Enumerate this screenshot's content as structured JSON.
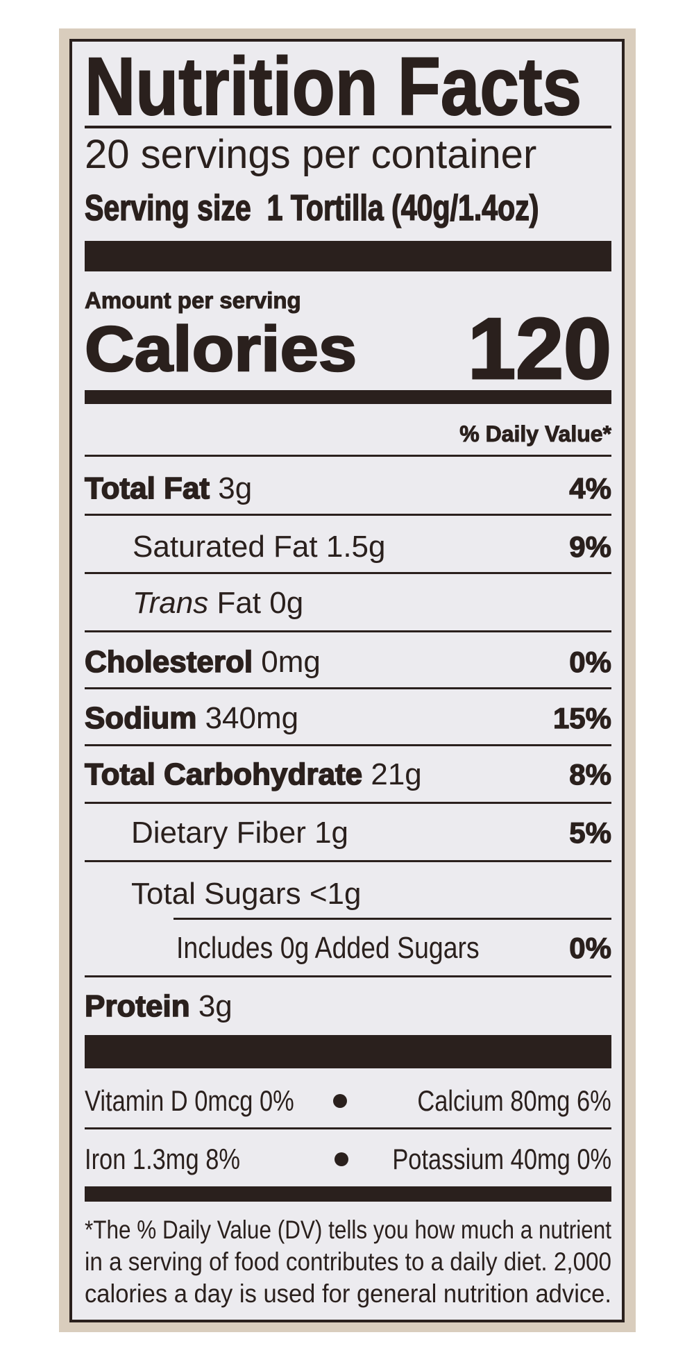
{
  "label": {
    "title": "Nutrition Facts",
    "servings": "20 servings per container",
    "serving_size_label": "Serving size",
    "serving_size_value": "1 Tortilla (40g/1.4oz)",
    "amount_per_serving": "Amount per serving",
    "calories_label": "Calories",
    "calories_value": "120",
    "dv_header": "% Daily Value*",
    "nutrients": [
      {
        "name": "Total Fat",
        "amount": "3g",
        "dv": "4%"
      },
      {
        "name": "Saturated Fat",
        "amount": "1.5g",
        "dv": "9%"
      },
      {
        "name_italic": "Trans",
        "name": "Fat",
        "amount": "0g",
        "dv": ""
      },
      {
        "name": "Cholesterol",
        "amount": "0mg",
        "dv": "0%"
      },
      {
        "name": "Sodium",
        "amount": "340mg",
        "dv": "15%"
      },
      {
        "name": "Total Carbohydrate",
        "amount": "21g",
        "dv": "8%"
      },
      {
        "name": "Dietary Fiber",
        "amount": "1g",
        "dv": "5%"
      },
      {
        "name": "Total Sugars",
        "amount": "<1g",
        "dv": ""
      },
      {
        "name": "Includes 0g Added Sugars",
        "amount": "",
        "dv": "0%"
      },
      {
        "name": "Protein",
        "amount": "3g",
        "dv": ""
      }
    ],
    "vitamins": [
      {
        "text": "Vitamin D 0mcg 0%"
      },
      {
        "text": "Calcium 80mg 6%"
      },
      {
        "text": "Iron 1.3mg 8%"
      },
      {
        "text": "Potassium 40mg 0%"
      }
    ],
    "footnote": [
      "*The % Daily Value (DV) tells you how much a nutrient",
      "in a serving of food contributes to a daily diet. 2,000",
      "calories a day is used for general nutrition advice."
    ]
  },
  "colors": {
    "ink": "#2a201d",
    "panel": "#ecebef",
    "package": "#d9cdbd"
  }
}
